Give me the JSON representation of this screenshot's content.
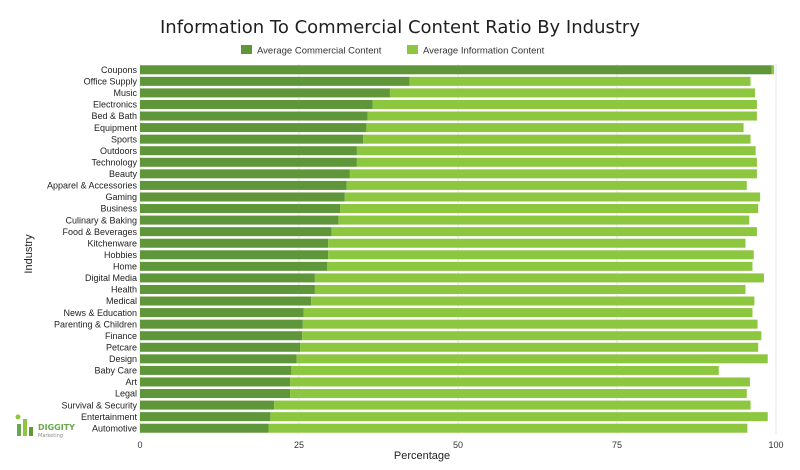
{
  "logo": {
    "name": "DIGGITY",
    "tagline": "Marketing"
  },
  "chart_data": {
    "type": "bar",
    "orientation": "horizontal",
    "stacked": true,
    "title": "Information To Commercial Content Ratio By Industry",
    "xlabel": "Percentage",
    "ylabel": "Industry",
    "xlim": [
      0,
      100
    ],
    "xticks": [
      0,
      25,
      50,
      75,
      100
    ],
    "grid": true,
    "legend_position": "top",
    "colors": {
      "commercial": "#5e9639",
      "information": "#8dc63f"
    },
    "categories": [
      "Coupons",
      "Office Supply",
      "Music",
      "Electronics",
      "Bed & Bath",
      "Equipment",
      "Sports",
      "Outdoors",
      "Technology",
      "Beauty",
      "Apparel & Accessories",
      "Gaming",
      "Business",
      "Culinary & Baking",
      "Food & Beverages",
      "Kitchenware",
      "Hobbies",
      "Home",
      "Digital Media",
      "Health",
      "Medical",
      "News & Education",
      "Parenting & Children",
      "Finance",
      "Petcare",
      "Design",
      "Baby Care",
      "Art",
      "Legal",
      "Survival & Security",
      "Entertainment",
      "Automotive"
    ],
    "series": [
      {
        "name": "Average Commercial Content",
        "values": [
          99.3,
          42.4,
          39.3,
          36.6,
          35.8,
          35.6,
          35.1,
          34.1,
          34.1,
          33.0,
          32.5,
          32.2,
          31.5,
          31.2,
          30.1,
          29.6,
          29.6,
          29.4,
          27.5,
          27.5,
          26.9,
          25.7,
          25.6,
          25.5,
          25.2,
          24.6,
          23.8,
          23.6,
          23.6,
          21.1,
          20.5,
          20.2
        ]
      },
      {
        "name": "Average Information Content",
        "values": [
          0.4,
          53.6,
          57.4,
          60.4,
          61.2,
          59.3,
          60.9,
          62.7,
          62.9,
          64.0,
          62.9,
          65.3,
          65.7,
          64.6,
          66.9,
          65.6,
          66.9,
          66.9,
          70.6,
          67.7,
          69.7,
          70.6,
          71.5,
          72.2,
          72.0,
          74.1,
          67.2,
          72.3,
          71.8,
          74.9,
          78.2,
          75.3
        ]
      }
    ]
  }
}
